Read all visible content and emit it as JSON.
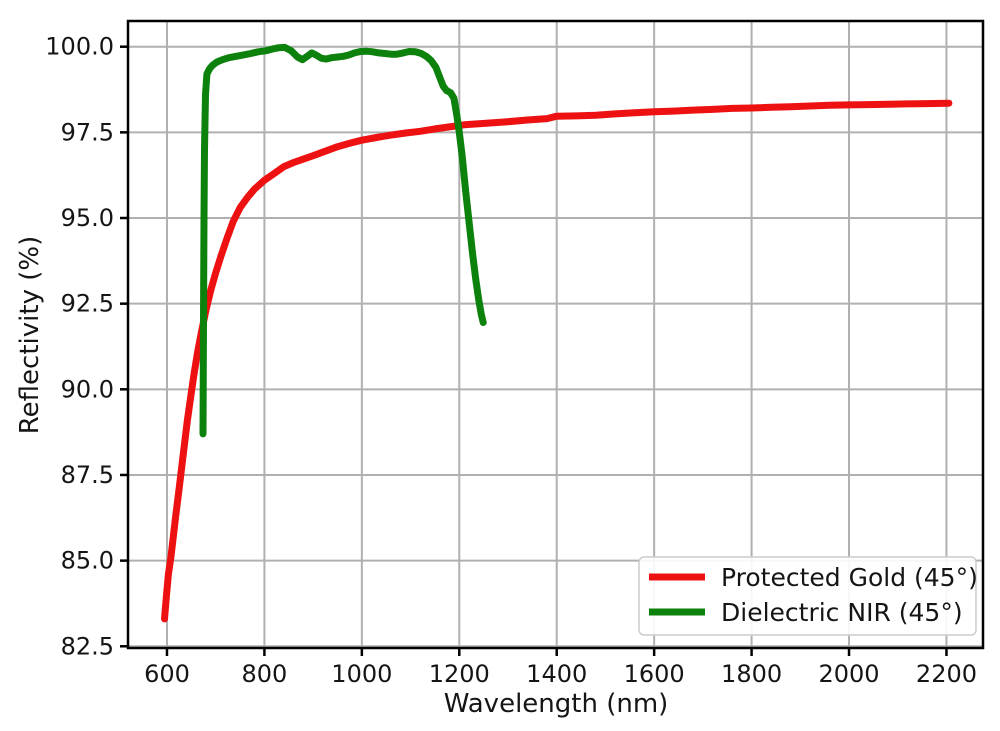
{
  "figure": {
    "background": "#ffffff"
  },
  "colors": {
    "grid": "#b0b0b0",
    "spine": "#000000",
    "text": "#151515",
    "legend_border": "#cccccc",
    "legend_background": "#ffffff"
  },
  "chart_data": {
    "type": "line",
    "title": "",
    "xlabel": "Wavelength (nm)",
    "ylabel": "Reflectivity (%)",
    "xlim": [
      520,
      2275
    ],
    "ylim": [
      82.45,
      100.75
    ],
    "xticks": [
      600,
      800,
      1000,
      1200,
      1400,
      1600,
      1800,
      2000,
      2200
    ],
    "xtick_labels": [
      "600",
      "800",
      "1000",
      "1200",
      "1400",
      "1600",
      "1800",
      "2000",
      "2200"
    ],
    "yticks": [
      82.5,
      85.0,
      87.5,
      90.0,
      92.5,
      95.0,
      97.5,
      100.0
    ],
    "ytick_labels": [
      "82.5",
      "85.0",
      "87.5",
      "90.0",
      "92.5",
      "95.0",
      "97.5",
      "100.0"
    ],
    "grid": true,
    "legend": {
      "position": "lower-right",
      "entries": [
        "Protected Gold (45°)",
        "Dielectric NIR (45°)"
      ]
    },
    "series": [
      {
        "name": "Protected Gold (45°)",
        "color": "#ee1111",
        "linewidth": 7,
        "points": [
          [
            595,
            83.3
          ],
          [
            599,
            84.0
          ],
          [
            603,
            84.6
          ],
          [
            608,
            85.1
          ],
          [
            613,
            85.7
          ],
          [
            618,
            86.3
          ],
          [
            624,
            87.0
          ],
          [
            630,
            87.7
          ],
          [
            636,
            88.4
          ],
          [
            642,
            89.1
          ],
          [
            649,
            89.8
          ],
          [
            656,
            90.5
          ],
          [
            663,
            91.1
          ],
          [
            671,
            91.7
          ],
          [
            680,
            92.3
          ],
          [
            690,
            92.9
          ],
          [
            700,
            93.4
          ],
          [
            711,
            93.9
          ],
          [
            723,
            94.4
          ],
          [
            736,
            94.9
          ],
          [
            750,
            95.3
          ],
          [
            765,
            95.6
          ],
          [
            780,
            95.85
          ],
          [
            800,
            96.1
          ],
          [
            820,
            96.3
          ],
          [
            840,
            96.5
          ],
          [
            860,
            96.62
          ],
          [
            880,
            96.72
          ],
          [
            900,
            96.82
          ],
          [
            925,
            96.95
          ],
          [
            950,
            97.08
          ],
          [
            975,
            97.18
          ],
          [
            1000,
            97.27
          ],
          [
            1030,
            97.35
          ],
          [
            1060,
            97.42
          ],
          [
            1090,
            97.48
          ],
          [
            1120,
            97.53
          ],
          [
            1150,
            97.6
          ],
          [
            1180,
            97.66
          ],
          [
            1210,
            97.72
          ],
          [
            1240,
            97.75
          ],
          [
            1270,
            97.78
          ],
          [
            1300,
            97.81
          ],
          [
            1340,
            97.86
          ],
          [
            1380,
            97.9
          ],
          [
            1400,
            97.97
          ],
          [
            1440,
            97.98
          ],
          [
            1480,
            98.0
          ],
          [
            1520,
            98.04
          ],
          [
            1560,
            98.07
          ],
          [
            1600,
            98.1
          ],
          [
            1640,
            98.12
          ],
          [
            1680,
            98.15
          ],
          [
            1720,
            98.17
          ],
          [
            1760,
            98.2
          ],
          [
            1800,
            98.21
          ],
          [
            1840,
            98.23
          ],
          [
            1880,
            98.25
          ],
          [
            1920,
            98.27
          ],
          [
            1960,
            98.29
          ],
          [
            2000,
            98.3
          ],
          [
            2040,
            98.31
          ],
          [
            2080,
            98.32
          ],
          [
            2120,
            98.33
          ],
          [
            2160,
            98.34
          ],
          [
            2205,
            98.35
          ]
        ]
      },
      {
        "name": "Dielectric NIR (45°)",
        "color": "#0c810c",
        "linewidth": 7,
        "points": [
          [
            674,
            88.7
          ],
          [
            675,
            92.0
          ],
          [
            676,
            95.0
          ],
          [
            677,
            97.0
          ],
          [
            679,
            98.6
          ],
          [
            682,
            99.2
          ],
          [
            687,
            99.35
          ],
          [
            693,
            99.45
          ],
          [
            702,
            99.55
          ],
          [
            714,
            99.62
          ],
          [
            727,
            99.68
          ],
          [
            742,
            99.72
          ],
          [
            757,
            99.76
          ],
          [
            772,
            99.8
          ],
          [
            787,
            99.85
          ],
          [
            802,
            99.88
          ],
          [
            816,
            99.93
          ],
          [
            830,
            99.97
          ],
          [
            842,
            99.98
          ],
          [
            855,
            99.88
          ],
          [
            868,
            99.7
          ],
          [
            878,
            99.62
          ],
          [
            888,
            99.72
          ],
          [
            897,
            99.82
          ],
          [
            907,
            99.75
          ],
          [
            917,
            99.66
          ],
          [
            927,
            99.64
          ],
          [
            938,
            99.68
          ],
          [
            950,
            99.7
          ],
          [
            962,
            99.72
          ],
          [
            974,
            99.76
          ],
          [
            985,
            99.82
          ],
          [
            997,
            99.86
          ],
          [
            1010,
            99.87
          ],
          [
            1022,
            99.85
          ],
          [
            1035,
            99.82
          ],
          [
            1048,
            99.8
          ],
          [
            1060,
            99.78
          ],
          [
            1072,
            99.78
          ],
          [
            1085,
            99.82
          ],
          [
            1097,
            99.86
          ],
          [
            1110,
            99.85
          ],
          [
            1122,
            99.8
          ],
          [
            1132,
            99.72
          ],
          [
            1142,
            99.6
          ],
          [
            1152,
            99.4
          ],
          [
            1160,
            99.1
          ],
          [
            1167,
            98.85
          ],
          [
            1174,
            98.72
          ],
          [
            1182,
            98.66
          ],
          [
            1189,
            98.5
          ],
          [
            1195,
            98.0
          ],
          [
            1200,
            97.5
          ],
          [
            1206,
            96.8
          ],
          [
            1213,
            95.8
          ],
          [
            1220,
            94.9
          ],
          [
            1227,
            94.0
          ],
          [
            1234,
            93.2
          ],
          [
            1240,
            92.6
          ],
          [
            1245,
            92.2
          ],
          [
            1249,
            91.95
          ]
        ]
      }
    ]
  }
}
